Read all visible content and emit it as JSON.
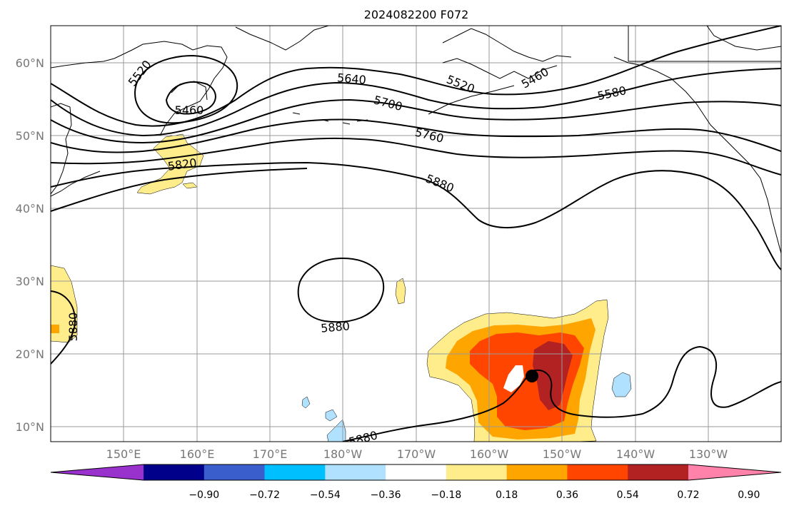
{
  "title": "2024082200 F072",
  "lat_labels": [
    "60°N",
    "50°N",
    "40°N",
    "30°N",
    "20°N",
    "10°N"
  ],
  "lon_labels": [
    "150°E",
    "160°E",
    "170°E",
    "180°W",
    "170°W",
    "160°W",
    "150°W",
    "140°W",
    "130°W"
  ],
  "contour_labels": [
    "5520",
    "5460",
    "5640",
    "5520",
    "5460",
    "5700",
    "5580",
    "5760",
    "5820",
    "5880",
    "5880",
    "5880",
    "5880"
  ],
  "colorbar": {
    "colors": [
      "#9932CC",
      "#00008B",
      "#3A5FCD",
      "#00BFFF",
      "#B0E2FF",
      "#FFFFFF",
      "#FFEC8B",
      "#FFA500",
      "#FF4500",
      "#B22222",
      "#FF82AB"
    ],
    "tick_labels": [
      "−0.90",
      "−0.72",
      "−0.54",
      "−0.36",
      "−0.18",
      "0.18",
      "0.36",
      "0.54",
      "0.72",
      "0.90"
    ]
  },
  "storm_marker": "storm-center"
}
